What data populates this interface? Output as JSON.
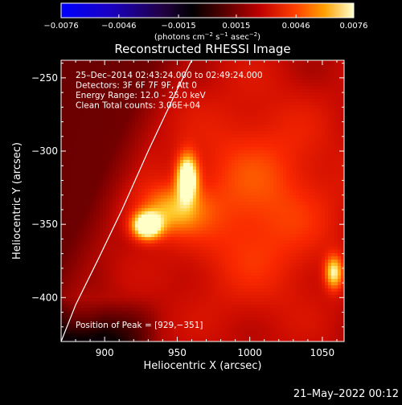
{
  "chart_data": {
    "type": "heatmap",
    "title": "Reconstructed RHESSI Image",
    "xlabel": "Heliocentric X (arcsec)",
    "ylabel": "Heliocentric Y (arcsec)",
    "xlim": [
      870,
      1065
    ],
    "ylim": [
      -430,
      -238
    ],
    "xticks": [
      900,
      950,
      1000,
      1050
    ],
    "yticks": [
      -250,
      -300,
      -350,
      -400
    ],
    "xtick_labels": [
      "900",
      "950",
      "1000",
      "1050"
    ],
    "ytick_labels": [
      "−250",
      "−300",
      "−350",
      "−400"
    ],
    "colorbar": {
      "min": -0.0076,
      "max": 0.0076,
      "ticks": [
        -0.0076,
        -0.0046,
        -0.0015,
        0.0015,
        0.0046,
        0.0076
      ],
      "tick_labels": [
        "−0.0076",
        "−0.0046",
        "−0.0015",
        "0.0015",
        "0.0046",
        "0.0076"
      ],
      "unit_prefix": "(photons cm",
      "unit_exp1": "−2",
      "unit_mid": " s",
      "unit_exp2": "−1",
      "unit_mid2": " asec",
      "unit_exp3": "−2",
      "unit_suffix": ")"
    },
    "annotations": [
      "25–Dec–2014 02:43:24.000 to 02:49:24.000",
      "Detectors: 3F 6F 7F 9F, Att 0",
      "Energy Range: 12.0 – 25.0 keV",
      "Clean    Total counts: 3.06E+04"
    ],
    "peak_label": "Position of Peak = [929,−351]",
    "sources": [
      {
        "x": 929,
        "y": -351,
        "value": 0.0076
      },
      {
        "x": 957,
        "y": -318,
        "value": 0.0068
      },
      {
        "x": 1058,
        "y": -383,
        "value": 0.004
      }
    ],
    "limb": [
      [
        870,
        -430
      ],
      [
        880,
        -405
      ],
      [
        895,
        -375
      ],
      [
        912,
        -340
      ],
      [
        930,
        -300
      ],
      [
        950,
        -258
      ],
      [
        960,
        -238
      ]
    ],
    "timestamp": "21–May–2022 00:12"
  }
}
